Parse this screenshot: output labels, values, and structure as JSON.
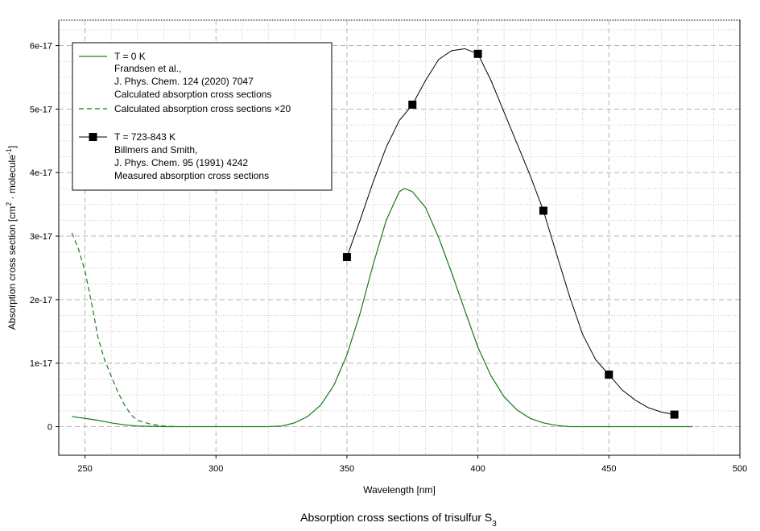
{
  "chart_data": {
    "type": "line",
    "caption": "Absorption cross sections of trisulfur S",
    "caption_subscript": "3",
    "xlabel": "Wavelength [nm]",
    "ylabel_main": "Absorption cross section [cm",
    "ylabel_sup1": "2",
    "ylabel_mid": " · molecule",
    "ylabel_sup2": "-1",
    "ylabel_end": "]",
    "xlim": [
      240,
      500
    ],
    "ylim": [
      -4.5e-18,
      6.4e-17
    ],
    "x_ticks": [
      250,
      300,
      350,
      400,
      450,
      500
    ],
    "x_tick_labels": [
      "250",
      "300",
      "350",
      "400",
      "450",
      "500"
    ],
    "y_ticks": [
      0,
      1e-17,
      2e-17,
      3e-17,
      4e-17,
      5e-17,
      6e-17
    ],
    "y_tick_labels": [
      "0",
      "1e-17",
      "2e-17",
      "3e-17",
      "4e-17",
      "5e-17",
      "6e-17"
    ],
    "grid": true,
    "legend_position": "top-left",
    "series": [
      {
        "legend_lines": [
          "T = 0 K",
          "Frandsen et al.,",
          "J. Phys. Chem. 124 (2020) 7047",
          "Calculated absorption cross sections"
        ],
        "style": "solid",
        "color": "#1a7a1a",
        "x": [
          245,
          250,
          255,
          260,
          265,
          270,
          280,
          300,
          320,
          325,
          330,
          335,
          340,
          345,
          350,
          355,
          360,
          365,
          370,
          372,
          375,
          380,
          385,
          390,
          395,
          400,
          405,
          410,
          415,
          420,
          425,
          430,
          435,
          440,
          460,
          482
        ],
        "y": [
          1.6e-18,
          1.3e-18,
          1e-18,
          6e-19,
          3e-19,
          1e-19,
          0,
          0,
          0,
          1e-19,
          6e-19,
          1.6e-18,
          3.4e-18,
          6.5e-18,
          1.13e-17,
          1.78e-17,
          2.55e-17,
          3.25e-17,
          3.7e-17,
          3.75e-17,
          3.7e-17,
          3.45e-17,
          2.98e-17,
          2.42e-17,
          1.83e-17,
          1.25e-17,
          8e-18,
          4.7e-18,
          2.6e-18,
          1.3e-18,
          6e-19,
          2e-19,
          0,
          0,
          0,
          0
        ]
      },
      {
        "legend_lines": [
          "Calculated absorption cross sections ×20"
        ],
        "style": "dashed",
        "color": "#1a7a1a",
        "x": [
          245,
          247.5,
          250,
          252.5,
          255,
          257.5,
          260,
          262.5,
          265,
          267.5,
          270,
          275,
          280,
          285
        ],
        "y": [
          3.05e-17,
          2.8e-17,
          2.45e-17,
          1.95e-17,
          1.4e-17,
          1.05e-17,
          8e-18,
          5.5e-18,
          3.5e-18,
          1.9e-18,
          1e-18,
          4e-19,
          1e-19,
          0
        ]
      },
      {
        "legend_lines": [
          "T = 723-843 K",
          "Billmers and Smith,",
          "J. Phys. Chem. 95 (1991) 4242",
          "Measured absorption cross sections"
        ],
        "style": "solid-markers",
        "color": "#000000",
        "x": [
          350,
          375,
          400,
          425,
          450,
          475
        ],
        "y": [
          2.67e-17,
          5.07e-17,
          5.87e-17,
          3.4e-17,
          8.2e-18,
          1.9e-18
        ],
        "curve_x": [
          350,
          355,
          360,
          365,
          370,
          375,
          380,
          385,
          390,
          395,
          400,
          405,
          410,
          415,
          420,
          425,
          430,
          435,
          440,
          445,
          450,
          455,
          460,
          465,
          470,
          475
        ],
        "curve_y": [
          2.67e-17,
          3.25e-17,
          3.85e-17,
          4.4e-17,
          4.82e-17,
          5.07e-17,
          5.45e-17,
          5.78e-17,
          5.92e-17,
          5.95e-17,
          5.87e-17,
          5.45e-17,
          4.95e-17,
          4.45e-17,
          3.95e-17,
          3.4e-17,
          2.72e-17,
          2.05e-17,
          1.45e-17,
          1.05e-17,
          8.2e-18,
          5.8e-18,
          4.2e-18,
          3e-18,
          2.3e-18,
          1.9e-18
        ]
      }
    ]
  }
}
